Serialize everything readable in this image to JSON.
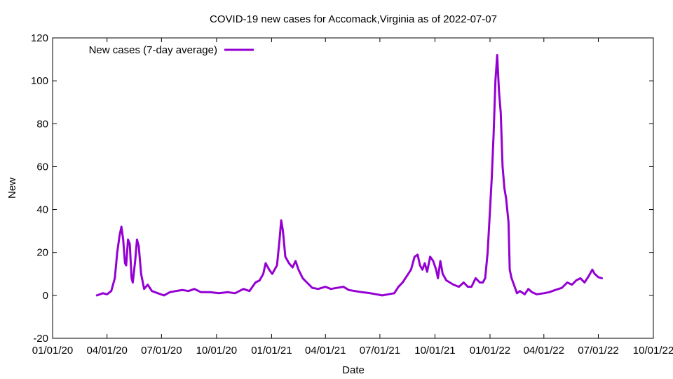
{
  "chart_data": {
    "type": "line",
    "title": "COVID-19 new cases for Accomack,Virginia as of 2022-07-07",
    "xlabel": "Date",
    "ylabel": "New",
    "x_ticks": [
      "01/01/20",
      "04/01/20",
      "07/01/20",
      "10/01/20",
      "01/01/21",
      "04/01/21",
      "07/01/21",
      "10/01/21",
      "01/01/22",
      "04/01/22",
      "07/01/22",
      "10/01/22"
    ],
    "x_tick_dates": [
      "2020-01-01",
      "2020-04-01",
      "2020-07-01",
      "2020-10-01",
      "2021-01-01",
      "2021-04-01",
      "2021-07-01",
      "2021-10-01",
      "2022-01-01",
      "2022-04-01",
      "2022-07-01",
      "2022-10-01"
    ],
    "y_ticks": [
      "-20",
      "0",
      "20",
      "40",
      "60",
      "80",
      "100",
      "120"
    ],
    "xlim": [
      "2020-01-01",
      "2022-10-01"
    ],
    "ylim": [
      -20,
      120
    ],
    "grid": false,
    "legend": "top-left",
    "series": [
      {
        "name": "New cases (7-day average)",
        "color": "#9400d3",
        "points": [
          [
            "2020-03-15",
            0
          ],
          [
            "2020-03-25",
            1
          ],
          [
            "2020-04-01",
            0.5
          ],
          [
            "2020-04-08",
            2
          ],
          [
            "2020-04-14",
            8
          ],
          [
            "2020-04-18",
            20
          ],
          [
            "2020-04-22",
            28
          ],
          [
            "2020-04-25",
            32
          ],
          [
            "2020-04-28",
            26
          ],
          [
            "2020-05-01",
            15
          ],
          [
            "2020-05-03",
            14
          ],
          [
            "2020-05-06",
            26
          ],
          [
            "2020-05-09",
            24
          ],
          [
            "2020-05-12",
            8
          ],
          [
            "2020-05-14",
            6
          ],
          [
            "2020-05-18",
            16
          ],
          [
            "2020-05-21",
            26
          ],
          [
            "2020-05-24",
            23
          ],
          [
            "2020-05-28",
            10
          ],
          [
            "2020-06-02",
            3
          ],
          [
            "2020-06-08",
            5
          ],
          [
            "2020-06-15",
            2
          ],
          [
            "2020-06-25",
            1
          ],
          [
            "2020-07-05",
            0
          ],
          [
            "2020-07-15",
            1.5
          ],
          [
            "2020-07-25",
            2
          ],
          [
            "2020-08-05",
            2.5
          ],
          [
            "2020-08-15",
            2
          ],
          [
            "2020-08-25",
            3
          ],
          [
            "2020-09-05",
            1.5
          ],
          [
            "2020-09-20",
            1.5
          ],
          [
            "2020-10-05",
            1
          ],
          [
            "2020-10-20",
            1.5
          ],
          [
            "2020-11-01",
            1
          ],
          [
            "2020-11-15",
            3
          ],
          [
            "2020-11-25",
            2
          ],
          [
            "2020-12-05",
            6
          ],
          [
            "2020-12-12",
            7
          ],
          [
            "2020-12-18",
            10
          ],
          [
            "2020-12-22",
            15
          ],
          [
            "2020-12-28",
            12
          ],
          [
            "2021-01-02",
            10
          ],
          [
            "2021-01-06",
            12
          ],
          [
            "2021-01-10",
            14
          ],
          [
            "2021-01-14",
            25
          ],
          [
            "2021-01-17",
            35
          ],
          [
            "2021-01-20",
            30
          ],
          [
            "2021-01-24",
            18
          ],
          [
            "2021-01-30",
            15
          ],
          [
            "2021-02-05",
            13
          ],
          [
            "2021-02-10",
            16
          ],
          [
            "2021-02-15",
            12
          ],
          [
            "2021-02-22",
            8
          ],
          [
            "2021-03-01",
            6
          ],
          [
            "2021-03-10",
            3.5
          ],
          [
            "2021-03-20",
            3
          ],
          [
            "2021-04-01",
            4
          ],
          [
            "2021-04-10",
            3
          ],
          [
            "2021-04-20",
            3.5
          ],
          [
            "2021-05-01",
            4
          ],
          [
            "2021-05-10",
            2.5
          ],
          [
            "2021-05-20",
            2
          ],
          [
            "2021-06-01",
            1.5
          ],
          [
            "2021-06-15",
            1
          ],
          [
            "2021-06-25",
            0.5
          ],
          [
            "2021-07-05",
            0
          ],
          [
            "2021-07-15",
            0.5
          ],
          [
            "2021-07-25",
            1
          ],
          [
            "2021-08-01",
            4
          ],
          [
            "2021-08-08",
            6
          ],
          [
            "2021-08-15",
            9
          ],
          [
            "2021-08-22",
            12
          ],
          [
            "2021-08-28",
            18
          ],
          [
            "2021-09-02",
            19
          ],
          [
            "2021-09-06",
            14
          ],
          [
            "2021-09-10",
            12
          ],
          [
            "2021-09-14",
            15
          ],
          [
            "2021-09-18",
            11
          ],
          [
            "2021-09-23",
            18
          ],
          [
            "2021-09-28",
            16
          ],
          [
            "2021-10-03",
            12
          ],
          [
            "2021-10-06",
            8
          ],
          [
            "2021-10-10",
            16
          ],
          [
            "2021-10-14",
            10
          ],
          [
            "2021-10-20",
            7
          ],
          [
            "2021-11-01",
            5
          ],
          [
            "2021-11-10",
            4
          ],
          [
            "2021-11-18",
            6
          ],
          [
            "2021-11-25",
            4
          ],
          [
            "2021-12-01",
            4
          ],
          [
            "2021-12-08",
            8
          ],
          [
            "2021-12-15",
            6
          ],
          [
            "2021-12-20",
            6
          ],
          [
            "2021-12-24",
            8
          ],
          [
            "2021-12-28",
            20
          ],
          [
            "2022-01-01",
            40
          ],
          [
            "2022-01-04",
            55
          ],
          [
            "2022-01-07",
            75
          ],
          [
            "2022-01-10",
            100
          ],
          [
            "2022-01-13",
            112
          ],
          [
            "2022-01-16",
            95
          ],
          [
            "2022-01-19",
            85
          ],
          [
            "2022-01-22",
            60
          ],
          [
            "2022-01-25",
            50
          ],
          [
            "2022-01-28",
            45
          ],
          [
            "2022-02-01",
            34
          ],
          [
            "2022-02-03",
            12
          ],
          [
            "2022-02-06",
            8
          ],
          [
            "2022-02-10",
            5
          ],
          [
            "2022-02-15",
            1
          ],
          [
            "2022-02-20",
            2
          ],
          [
            "2022-02-28",
            0.5
          ],
          [
            "2022-03-06",
            3
          ],
          [
            "2022-03-12",
            1.5
          ],
          [
            "2022-03-20",
            0.5
          ],
          [
            "2022-04-01",
            1
          ],
          [
            "2022-04-10",
            1.5
          ],
          [
            "2022-04-20",
            2.5
          ],
          [
            "2022-05-01",
            3.5
          ],
          [
            "2022-05-10",
            6
          ],
          [
            "2022-05-18",
            5
          ],
          [
            "2022-05-25",
            7
          ],
          [
            "2022-06-01",
            8
          ],
          [
            "2022-06-08",
            6
          ],
          [
            "2022-06-15",
            9
          ],
          [
            "2022-06-21",
            12
          ],
          [
            "2022-06-25",
            10
          ],
          [
            "2022-07-01",
            8.5
          ],
          [
            "2022-07-07",
            8
          ]
        ]
      }
    ]
  }
}
